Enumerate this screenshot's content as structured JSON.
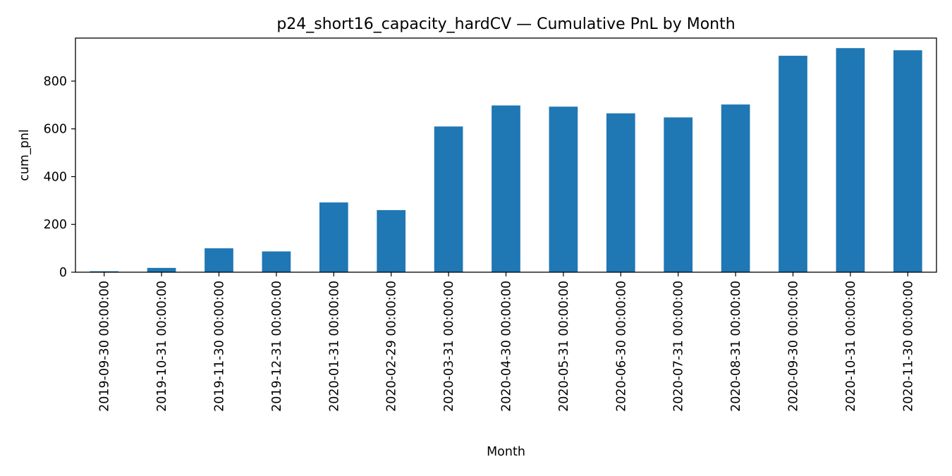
{
  "chart_data": {
    "type": "bar",
    "title": "p24_short16_capacity_hardCV — Cumulative PnL by Month",
    "xlabel": "Month",
    "ylabel": "cum_pnl",
    "ylim": [
      0,
      980
    ],
    "yticks": [
      0,
      200,
      400,
      600,
      800
    ],
    "grid": false,
    "legend": "none",
    "bar_color": "#1f77b4",
    "categories": [
      "2019-09-30 00:00:00",
      "2019-10-31 00:00:00",
      "2019-11-30 00:00:00",
      "2019-12-31 00:00:00",
      "2020-01-31 00:00:00",
      "2020-02-29 00:00:00",
      "2020-03-31 00:00:00",
      "2020-04-30 00:00:00",
      "2020-05-31 00:00:00",
      "2020-06-30 00:00:00",
      "2020-07-31 00:00:00",
      "2020-08-31 00:00:00",
      "2020-09-30 00:00:00",
      "2020-10-31 00:00:00",
      "2020-11-30 00:00:00"
    ],
    "values": [
      4,
      18,
      100,
      87,
      292,
      260,
      610,
      698,
      693,
      665,
      648,
      702,
      906,
      938,
      929
    ]
  }
}
